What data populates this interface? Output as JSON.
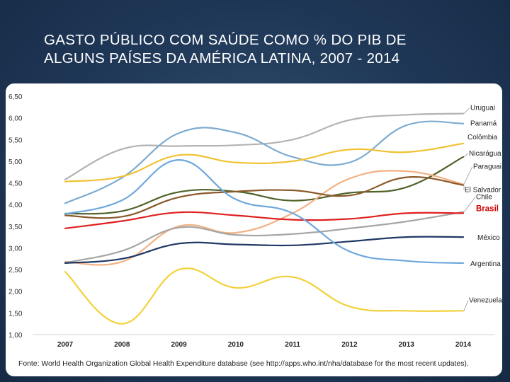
{
  "title": {
    "line1": "GASTO PÚBLICO COM SAÚDE COMO % DO PIB DE",
    "line2": "ALGUNS PAÍSES DA AMÉRICA LATINA, 2007 - 2014"
  },
  "source": "Fonte: World Health Organization Global Health Expenditure database (see http://apps.who.int/nha/database for the most recent updates).",
  "chart_data": {
    "type": "line",
    "title": "GASTO PÚBLICO COM SAÚDE COMO % DO PIB DE ALGUNS PAÍSES DA AMÉRICA LATINA, 2007 - 2014",
    "xlabel": "",
    "ylabel": "",
    "x": [
      "2007",
      "2008",
      "2009",
      "2010",
      "2011",
      "2012",
      "2013",
      "2014"
    ],
    "y_ticks": [
      "1,00",
      "1,50",
      "2,00",
      "2,50",
      "3,00",
      "3,50",
      "4,00",
      "4,50",
      "5,00",
      "5,50",
      "6,00",
      "6,50"
    ],
    "ylim": [
      1.0,
      6.5
    ],
    "grid": false,
    "legend": "inline labels at right end of each line",
    "series": [
      {
        "name": "Uruguai",
        "color": "#b3b3b3",
        "values": [
          4.58,
          5.28,
          5.35,
          5.37,
          5.5,
          5.95,
          6.07,
          6.1
        ],
        "highlight": false
      },
      {
        "name": "Panamá",
        "color": "#7eacd1",
        "values": [
          4.03,
          4.62,
          5.65,
          5.66,
          5.1,
          4.97,
          5.83,
          5.87
        ],
        "highlight": false
      },
      {
        "name": "Colômbia",
        "color": "#f1c232",
        "values": [
          4.53,
          4.65,
          5.14,
          4.97,
          5.0,
          5.27,
          5.21,
          5.41
        ],
        "highlight": false
      },
      {
        "name": "Nicarágua",
        "color": "#4f6228",
        "values": [
          3.79,
          3.85,
          4.29,
          4.3,
          4.09,
          4.27,
          4.4,
          5.1
        ],
        "highlight": false
      },
      {
        "name": "Paraguai",
        "color": "#f4b183",
        "values": [
          2.68,
          2.68,
          3.5,
          3.35,
          3.8,
          4.6,
          4.77,
          4.47
        ],
        "highlight": false
      },
      {
        "name": "El Salvador",
        "color": "#8b5a2b",
        "values": [
          3.75,
          3.72,
          4.17,
          4.3,
          4.33,
          4.21,
          4.63,
          4.45
        ],
        "highlight": false
      },
      {
        "name": "Chile",
        "color": "#a6a6a6",
        "values": [
          2.66,
          2.93,
          3.47,
          3.3,
          3.32,
          3.45,
          3.61,
          3.83
        ],
        "highlight": false
      },
      {
        "name": "Brasil",
        "color": "#e02020",
        "values": [
          3.45,
          3.62,
          3.82,
          3.75,
          3.65,
          3.67,
          3.8,
          3.8
        ],
        "highlight": true
      },
      {
        "name": "México",
        "color": "#1f3864",
        "values": [
          2.65,
          2.75,
          3.1,
          3.08,
          3.06,
          3.15,
          3.25,
          3.25
        ],
        "highlight": false
      },
      {
        "name": "Argentina",
        "color": "#6fa8dc",
        "values": [
          3.78,
          4.1,
          5.03,
          4.12,
          3.8,
          2.92,
          2.7,
          2.65
        ],
        "highlight": false
      },
      {
        "name": "Venezuela",
        "color": "#f3d13a",
        "values": [
          2.45,
          1.25,
          2.5,
          2.08,
          2.33,
          1.65,
          1.55,
          1.55
        ],
        "highlight": false
      }
    ]
  }
}
